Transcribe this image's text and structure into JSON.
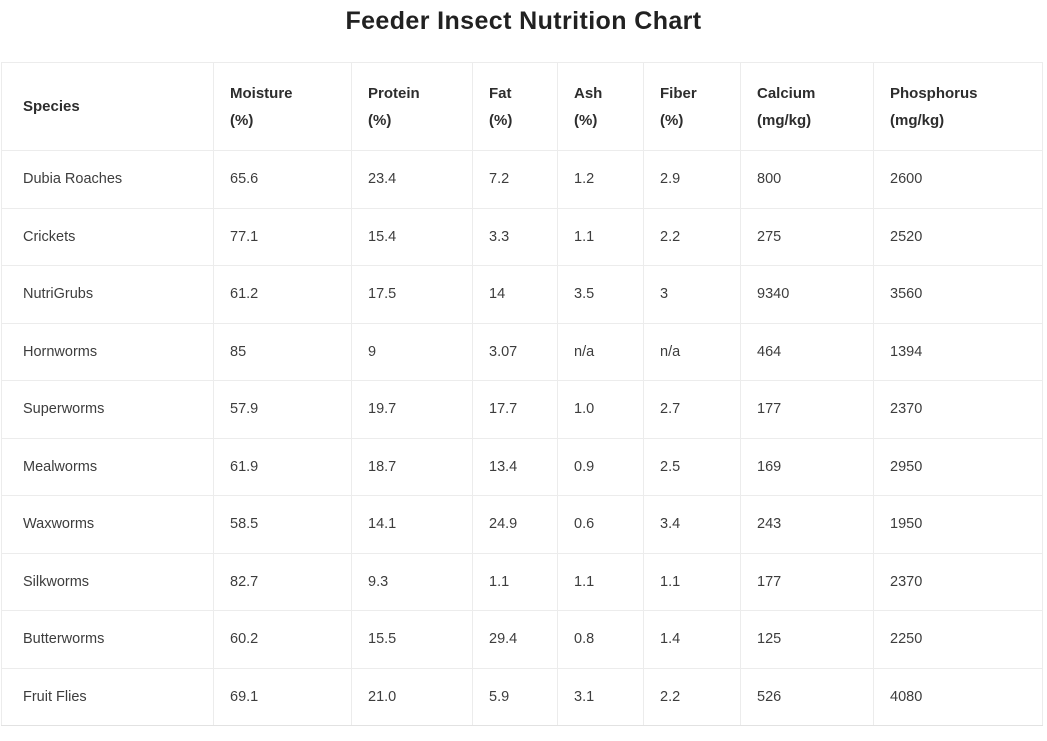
{
  "page_title": "Feeder Insect Nutrition Chart",
  "colors": {
    "background": "#ffffff",
    "border": "#ececec",
    "title_text": "#212121",
    "header_text": "#2d2d2d",
    "cell_text": "#3d3d3d"
  },
  "chart_data": {
    "type": "table",
    "title": "Feeder Insect Nutrition Chart",
    "columns": [
      {
        "key": "species",
        "label": "Species",
        "unit": ""
      },
      {
        "key": "moisture",
        "label": "Moisture",
        "unit": "(%)"
      },
      {
        "key": "protein",
        "label": "Protein",
        "unit": "(%)"
      },
      {
        "key": "fat",
        "label": "Fat",
        "unit": "(%)"
      },
      {
        "key": "ash",
        "label": "Ash",
        "unit": "(%)"
      },
      {
        "key": "fiber",
        "label": "Fiber",
        "unit": "(%)"
      },
      {
        "key": "calcium",
        "label": "Calcium",
        "unit": "(mg/kg)"
      },
      {
        "key": "phosphorus",
        "label": "Phosphorus",
        "unit": "(mg/kg)"
      }
    ],
    "rows": [
      [
        "Dubia Roaches",
        "65.6",
        "23.4",
        "7.2",
        "1.2",
        "2.9",
        "800",
        "2600"
      ],
      [
        "Crickets",
        "77.1",
        "15.4",
        "3.3",
        "1.1",
        "2.2",
        "275",
        "2520"
      ],
      [
        "NutriGrubs",
        "61.2",
        "17.5",
        "14",
        "3.5",
        "3",
        "9340",
        "3560"
      ],
      [
        "Hornworms",
        "85",
        "9",
        "3.07",
        "n/a",
        "n/a",
        "464",
        "1394"
      ],
      [
        "Superworms",
        "57.9",
        "19.7",
        "17.7",
        "1.0",
        "2.7",
        "177",
        "2370"
      ],
      [
        "Mealworms",
        "61.9",
        "18.7",
        "13.4",
        "0.9",
        "2.5",
        "169",
        "2950"
      ],
      [
        "Waxworms",
        "58.5",
        "14.1",
        "24.9",
        "0.6",
        "3.4",
        "243",
        "1950"
      ],
      [
        "Silkworms",
        "82.7",
        "9.3",
        "1.1",
        "1.1",
        "1.1",
        "177",
        "2370"
      ],
      [
        "Butterworms",
        "60.2",
        "15.5",
        "29.4",
        "0.8",
        "1.4",
        "125",
        "2250"
      ],
      [
        "Fruit Flies",
        "69.1",
        "21.0",
        "5.9",
        "3.1",
        "2.2",
        "526",
        "4080"
      ]
    ]
  }
}
